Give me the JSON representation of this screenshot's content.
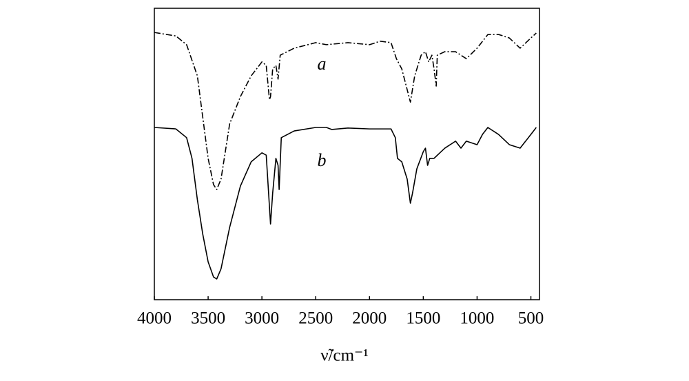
{
  "chart_data": {
    "type": "line",
    "x_label": "ν̃/cm⁻¹",
    "xlim": [
      4000,
      420
    ],
    "ylim": [
      0,
      100
    ],
    "xticks": [
      4000,
      3500,
      3000,
      2500,
      2000,
      1500,
      1000,
      500
    ],
    "series": [
      {
        "name": "a",
        "color": "#000000",
        "dash": "dashdot",
        "x": [
          4000,
          3800,
          3700,
          3600,
          3550,
          3500,
          3450,
          3420,
          3380,
          3300,
          3200,
          3100,
          3000,
          2960,
          2930,
          2920,
          2900,
          2870,
          2850,
          2830,
          2700,
          2500,
          2400,
          2200,
          2000,
          1900,
          1800,
          1750,
          1700,
          1650,
          1620,
          1580,
          1520,
          1480,
          1450,
          1420,
          1400,
          1380,
          1370,
          1300,
          1200,
          1100,
          1000,
          900,
          800,
          700,
          600,
          500,
          450
        ],
        "values": [
          91.7,
          90.5,
          87.5,
          76.8,
          62.6,
          48.5,
          39.5,
          37.8,
          41.4,
          60.3,
          69.7,
          76.8,
          81.6,
          80.4,
          68.6,
          69.7,
          79.2,
          80.4,
          75.7,
          83.9,
          86.3,
          88.2,
          87.5,
          88.2,
          87.5,
          88.7,
          88.2,
          82.7,
          79.2,
          72.1,
          67.8,
          76.8,
          83.9,
          85.1,
          81.6,
          83.9,
          79.2,
          73.3,
          83.9,
          85.1,
          85.1,
          82.7,
          86.3,
          91.0,
          91.0,
          89.8,
          86.3,
          89.8,
          91.5
        ]
      },
      {
        "name": "b",
        "color": "#000000",
        "dash": "solid",
        "x": [
          4000,
          3800,
          3700,
          3650,
          3600,
          3550,
          3500,
          3450,
          3420,
          3380,
          3300,
          3200,
          3100,
          3000,
          2960,
          2930,
          2920,
          2900,
          2870,
          2850,
          2840,
          2820,
          2700,
          2500,
          2400,
          2350,
          2200,
          2000,
          1800,
          1760,
          1740,
          1700,
          1650,
          1620,
          1600,
          1560,
          1500,
          1480,
          1460,
          1440,
          1400,
          1300,
          1200,
          1150,
          1100,
          1000,
          950,
          900,
          800,
          700,
          600,
          500,
          450
        ],
        "values": [
          59.1,
          58.6,
          55.6,
          48.5,
          34.3,
          22.5,
          13.0,
          7.8,
          7.1,
          10.6,
          24.8,
          39.0,
          47.3,
          50.4,
          49.6,
          31.9,
          26.0,
          36.6,
          48.5,
          46.1,
          37.8,
          55.6,
          57.9,
          59.1,
          59.1,
          58.4,
          58.9,
          58.6,
          58.6,
          55.6,
          48.5,
          47.3,
          41.4,
          33.1,
          36.6,
          44.9,
          50.8,
          52.0,
          46.1,
          48.5,
          48.5,
          52.0,
          54.4,
          52.0,
          54.4,
          53.2,
          56.7,
          59.1,
          56.7,
          53.2,
          52.0,
          56.7,
          59.1
        ]
      }
    ]
  }
}
